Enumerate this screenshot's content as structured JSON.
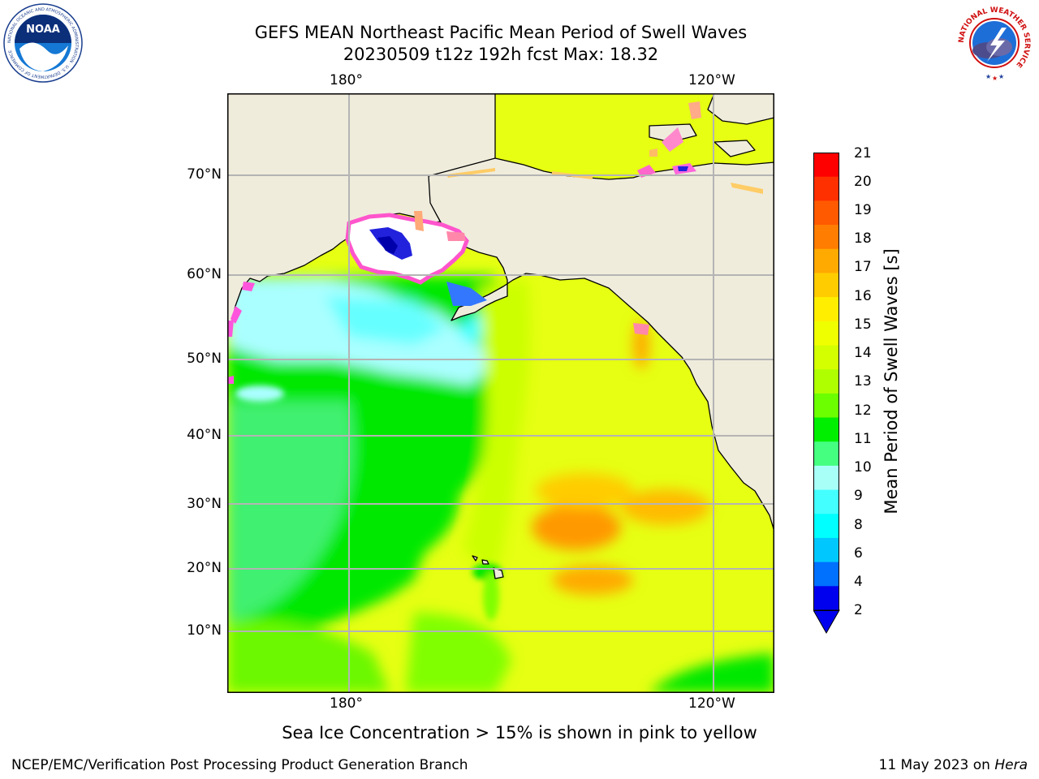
{
  "header": {
    "title_line1": "GEFS MEAN Northeast Pacific Mean Period of Swell Waves",
    "title_line2": "20230509 t12z 192h fcst   Max: 18.32"
  },
  "logos": {
    "left": {
      "name": "noaa-logo",
      "text": "NOAA",
      "ring_text": "NATIONAL OCEANIC AND ATMOSPHERIC ADMINISTRATION · U.S. DEPARTMENT OF COMMERCE"
    },
    "right": {
      "name": "nws-logo",
      "ring_text": "NATIONAL WEATHER SERVICE"
    }
  },
  "map": {
    "lon_labels": [
      "180°",
      "120°W"
    ],
    "lat_labels": [
      "70°N",
      "60°N",
      "50°N",
      "40°N",
      "30°N",
      "20°N",
      "10°N"
    ],
    "colors": {
      "land": "#efecdc",
      "grid": "#b4b4b4",
      "coast": "#000000"
    }
  },
  "colorbar": {
    "label": "Mean Period of Swell Waves [s]",
    "ticks": [
      "21",
      "20",
      "19",
      "18",
      "17",
      "16",
      "15",
      "14",
      "13",
      "12",
      "11",
      "10",
      "9",
      "8",
      "6",
      "4",
      "2"
    ],
    "colors": [
      "#ff0000",
      "#ff3000",
      "#ff5a00",
      "#ff7d00",
      "#ffaa00",
      "#ffcc00",
      "#ffee00",
      "#f0ff00",
      "#d4ff00",
      "#b0ff00",
      "#6cff00",
      "#00ee00",
      "#44ff80",
      "#a8fff8",
      "#44ffff",
      "#00ffff",
      "#00c8ff",
      "#0070ff",
      "#0000ee"
    ]
  },
  "notes": {
    "sea_ice": "Sea Ice Concentration > 15% is shown in pink to yellow"
  },
  "footer": {
    "left": "NCEP/EMC/Verification Post Processing Product Generation Branch",
    "right_date": "11 May 2023 on ",
    "right_host": "Hera"
  }
}
